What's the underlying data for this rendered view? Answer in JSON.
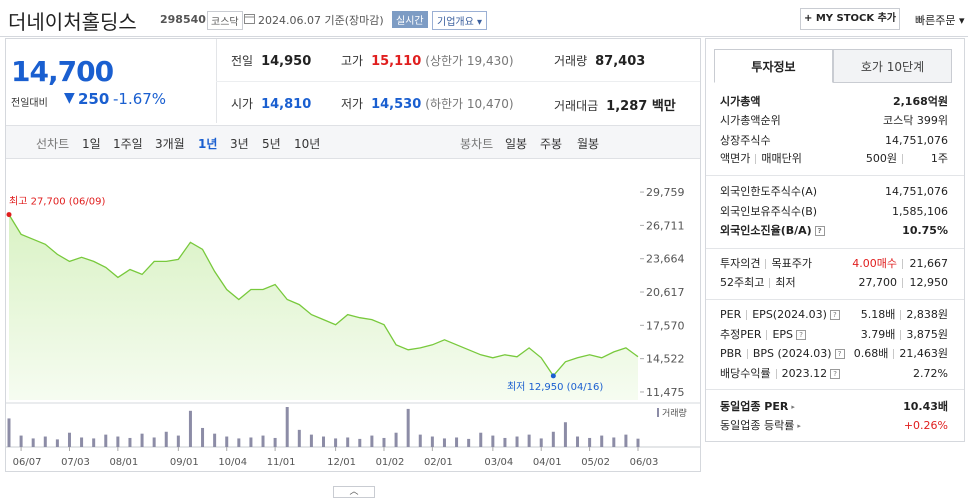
{
  "header": {
    "name": "더네이처홀딩스",
    "code": "298540",
    "market": "코스닥",
    "date": "2024.06.07 기준(장마감)",
    "realtime": "실시간",
    "overview": "기업개요",
    "mystock": "+ MY STOCK 추가",
    "quick_order": "빠른주문"
  },
  "quote": {
    "price": "14,700",
    "change_label": "전일대비",
    "change": "250",
    "change_pct": "-1.67%",
    "stats": [
      [
        {
          "label": "전일",
          "value": "14,950",
          "color": "#222222"
        },
        {
          "label": "고가",
          "value": "15,110",
          "note": "(상한가 19,430)",
          "color": "#e01e1e"
        },
        {
          "label": "거래량",
          "value": "87,403",
          "color": "#222222"
        }
      ],
      [
        {
          "label": "시가",
          "value": "14,810",
          "color": "#1a5fd0"
        },
        {
          "label": "저가",
          "value": "14,530",
          "note": "(하한가 10,470)",
          "color": "#1a5fd0"
        },
        {
          "label": "거래대금",
          "value": "1,287 백만",
          "color": "#222222"
        }
      ]
    ]
  },
  "tabs": {
    "line": {
      "label": "선차트",
      "options": [
        "1일",
        "1주일",
        "3개월",
        "1년",
        "3년",
        "5년",
        "10년"
      ]
    },
    "candle": {
      "label": "봉차트",
      "options": [
        "일봉",
        "주봉",
        "월봉"
      ]
    },
    "selected": "1년"
  },
  "chart_data": {
    "type": "line",
    "categories": [
      null,
      "06/07",
      null,
      null,
      null,
      "07/03",
      null,
      null,
      null,
      "08/01",
      null,
      null,
      null,
      null,
      "09/01",
      null,
      null,
      null,
      "10/04",
      null,
      null,
      null,
      "11/01",
      null,
      null,
      null,
      null,
      "12/01",
      null,
      null,
      null,
      "01/02",
      null,
      null,
      null,
      "02/01",
      null,
      null,
      null,
      null,
      "03/04",
      null,
      null,
      null,
      "04/01",
      null,
      null,
      null,
      "05/02",
      null,
      null,
      null,
      "06/03"
    ],
    "series": [
      {
        "name": "종가",
        "color": "#78c93c",
        "values": [
          27700,
          25900,
          25440,
          24980,
          24060,
          23420,
          23790,
          23420,
          22870,
          21950,
          22680,
          22230,
          23420,
          23420,
          23600,
          25160,
          24520,
          22500,
          20850,
          19930,
          20850,
          20850,
          21300,
          19930,
          19470,
          18550,
          18090,
          17630,
          18550,
          18270,
          18090,
          17630,
          15790,
          15330,
          15510,
          15790,
          16250,
          15790,
          15330,
          14870,
          14600,
          14870,
          14690,
          15510,
          14600,
          12950,
          14230,
          14600,
          14870,
          14600,
          15140,
          15510,
          14700
        ]
      }
    ],
    "volume": {
      "name": "거래량",
      "color": "#8c8ca6",
      "values": [
        300000,
        120000,
        90000,
        110000,
        80000,
        150000,
        100000,
        90000,
        130000,
        110000,
        95000,
        140000,
        100000,
        160000,
        120000,
        380000,
        200000,
        140000,
        110000,
        90000,
        100000,
        120000,
        95000,
        420000,
        180000,
        130000,
        110000,
        90000,
        100000,
        85000,
        120000,
        95000,
        150000,
        400000,
        130000,
        110000,
        90000,
        100000,
        85000,
        150000,
        120000,
        95000,
        110000,
        130000,
        90000,
        160000,
        260000,
        110000,
        95000,
        120000,
        100000,
        130000,
        87403
      ]
    },
    "ylim": [
      10740,
      30680
    ],
    "yticks": [
      {
        "value": 29759,
        "label": "29,759"
      },
      {
        "value": 26711,
        "label": "26,711"
      },
      {
        "value": 23664,
        "label": "23,664"
      },
      {
        "value": 20617,
        "label": "20,617"
      },
      {
        "value": 17570,
        "label": "17,570"
      },
      {
        "value": 14522,
        "label": "14,522"
      },
      {
        "value": 11475,
        "label": "11,475"
      }
    ],
    "grid": false,
    "annotations": {
      "high": "최고 27,700 (06/09)",
      "low": "최저 12,950 (04/16)"
    }
  },
  "side": {
    "tabs": [
      "투자정보",
      "호가 10단계"
    ],
    "active": "투자정보",
    "sections": [
      [
        {
          "label": [
            "시가총액"
          ],
          "value": [
            "2,168억원"
          ],
          "bold": true
        },
        {
          "label": [
            "시가총액순위"
          ],
          "value": [
            "코스닥 399위"
          ]
        },
        {
          "label": [
            "상장주식수"
          ],
          "value": [
            "14,751,076"
          ]
        },
        {
          "label": [
            "액면가",
            "매매단위"
          ],
          "value": [
            "500원",
            "1주"
          ]
        }
      ],
      [
        {
          "label": [
            "외국인한도주식수(A)"
          ],
          "value": [
            "14,751,076"
          ]
        },
        {
          "label": [
            "외국인보유주식수(B)"
          ],
          "value": [
            "1,585,106"
          ]
        },
        {
          "label": [
            "외국인소진율(B/A)"
          ],
          "value": [
            "10.75%"
          ],
          "bold": true,
          "help": true
        }
      ],
      [
        {
          "label": [
            "투자의견",
            "목표주가"
          ],
          "value": [
            "4.00매수",
            "21,667"
          ],
          "color": "#e01e1e"
        },
        {
          "label": [
            "52주최고",
            "최저"
          ],
          "value": [
            "27,700",
            "12,950"
          ]
        }
      ],
      [
        {
          "label": [
            "PER",
            "EPS(2024.03)"
          ],
          "value": [
            "5.18배",
            "2,838원"
          ],
          "help": true
        },
        {
          "label": [
            "추정PER",
            "EPS"
          ],
          "value": [
            "3.79배",
            "3,875원"
          ],
          "help": true
        },
        {
          "label": [
            "PBR",
            "BPS (2024.03)"
          ],
          "value": [
            "0.68배",
            "21,463원"
          ],
          "help": true
        },
        {
          "label": [
            "배당수익률",
            "2023.12"
          ],
          "value": [
            "2.72%"
          ],
          "help": true
        }
      ],
      [
        {
          "label": [
            "동일업종 PER"
          ],
          "value": [
            "10.43배"
          ],
          "bold": true,
          "arrow": true
        },
        {
          "label": [
            "동일업종 등락률"
          ],
          "value": [
            "+0.26%"
          ],
          "color": "#e01e1e",
          "arrow": true
        }
      ]
    ]
  }
}
